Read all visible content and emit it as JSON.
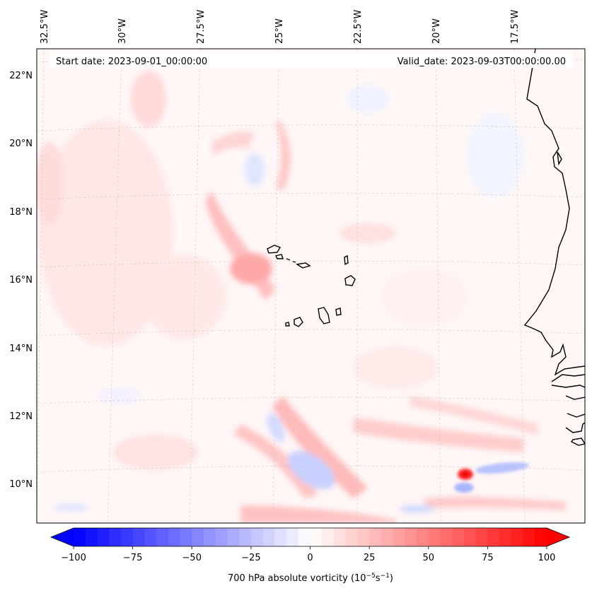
{
  "header": {
    "start_date": "Start date: 2023-09-01_00:00:00",
    "valid_date": "Valid_date: 2023-09-03T00:00:00.00"
  },
  "map": {
    "projection": "conic",
    "region": "Eastern tropical Atlantic, Cabo Verde and West African coast",
    "lon_labels": [
      "32.5°W",
      "30°W",
      "27.5°W",
      "25°W",
      "22.5°W",
      "20°W",
      "17.5°W"
    ],
    "lat_labels": [
      "22°N",
      "20°N",
      "18°N",
      "16°N",
      "14°N",
      "12°N",
      "10°N"
    ],
    "gridlines": "dashed"
  },
  "field": {
    "variable": "700 hPa absolute vorticity",
    "units": "10^-5 s^-1",
    "colormap": "bwr",
    "colors": {
      "negative": "#0000ff",
      "zero": "#ffffff",
      "positive": "#ff0000"
    }
  },
  "colorbar": {
    "min": -100,
    "max": 100,
    "tick_values": [
      -100,
      -75,
      -50,
      -25,
      0,
      25,
      50,
      75,
      100
    ],
    "tick_labels": [
      "−100",
      "−75",
      "−50",
      "−25",
      "0",
      "25",
      "50",
      "75",
      "100"
    ],
    "label_prefix": "700 hPa absolute vorticity (10",
    "label_exp1": "−5",
    "label_mid": "s",
    "label_exp2": "−1",
    "label_suffix": ")"
  }
}
